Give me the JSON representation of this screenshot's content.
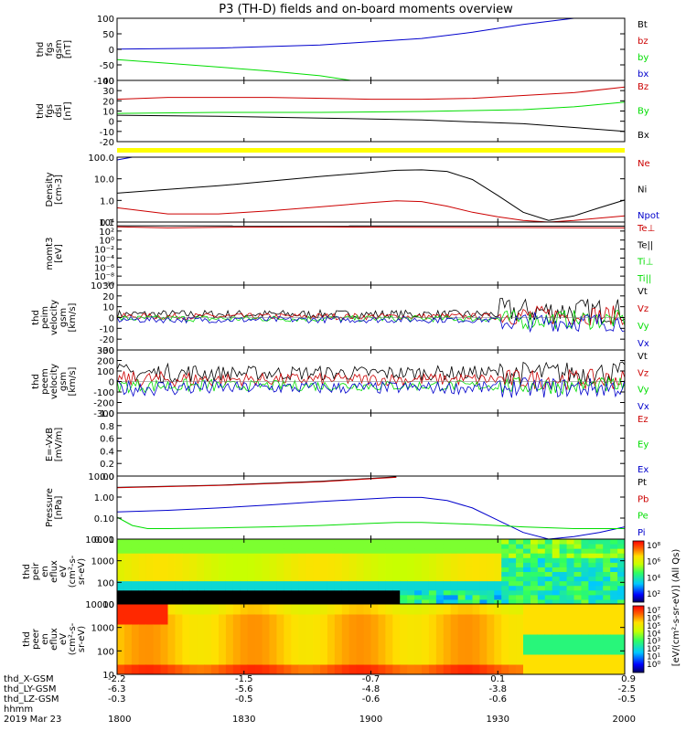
{
  "title": "P3 (TH-D) fields and on-board moments overview",
  "colors": {
    "black": "#000000",
    "red": "#cc0000",
    "green": "#00dd00",
    "blue": "#0000cc",
    "yellow": "#ffff00"
  },
  "chart_data": {
    "type": "line",
    "time_axis": {
      "ticks": [
        "1800",
        "1830",
        "1900",
        "1930",
        "2000"
      ],
      "range": [
        "18:00",
        "20:00"
      ],
      "row_labels": [
        "thd_X-GSM",
        "thd_LY-GSM",
        "thd_LZ-GSM",
        "hhmm",
        "2019 Mar 23"
      ],
      "x_gsm": [
        "-2.2",
        "-1.5",
        "-0.7",
        "0.1",
        "0.9"
      ],
      "y_gsm": [
        "-6.3",
        "-5.6",
        "-4.8",
        "-3.8",
        "-2.5"
      ],
      "z_gsm": [
        "-0.3",
        "-0.5",
        "-0.6",
        "-0.6",
        "-0.5"
      ]
    },
    "panels": [
      {
        "id": "fgs-gsm",
        "ylabel": [
          "thd",
          "fgs",
          "gsm",
          "[nT]"
        ],
        "ylim": [
          -100,
          100
        ],
        "yticks": [
          "100",
          "50",
          "0",
          "-50",
          "-100"
        ],
        "legend": [
          {
            "name": "Bt",
            "color": "black"
          },
          {
            "name": "bz",
            "color": "red"
          },
          {
            "name": "by",
            "color": "green"
          },
          {
            "name": "bx",
            "color": "blue"
          }
        ],
        "series": [
          {
            "name": "bx",
            "color": "blue",
            "x": [
              0,
              0.2,
              0.4,
              0.6,
              0.7,
              0.8,
              0.9
            ],
            "y": [
              1,
              4,
              14,
              35,
              55,
              80,
              105
            ]
          },
          {
            "name": "by",
            "color": "green",
            "x": [
              0,
              0.1,
              0.2,
              0.3,
              0.4,
              0.46
            ],
            "y": [
              -33,
              -45,
              -57,
              -70,
              -85,
              -102
            ]
          }
        ]
      },
      {
        "id": "fgs-dsl",
        "ylabel": [
          "thd",
          "fgs",
          "dsl",
          "[nT]"
        ],
        "ylim": [
          -25,
          40
        ],
        "yticks": [
          "40",
          "30",
          "20",
          "10",
          "0",
          "-10",
          "-20"
        ],
        "legend": [
          {
            "name": "Bz",
            "color": "red"
          },
          {
            "name": "By",
            "color": "green"
          },
          {
            "name": "Bx",
            "color": "black"
          }
        ],
        "series": [
          {
            "name": "Bz",
            "color": "red",
            "x": [
              0,
              0.1,
              0.3,
              0.5,
              0.6,
              0.7,
              0.8,
              0.9,
              1
            ],
            "y": [
              20,
              22,
              22,
              20,
              20,
              21,
              24,
              27,
              33
            ]
          },
          {
            "name": "By",
            "color": "green",
            "x": [
              0,
              0.2,
              0.4,
              0.6,
              0.7,
              0.8,
              0.9,
              1
            ],
            "y": [
              5,
              6,
              6,
              7,
              8,
              9,
              12,
              17
            ]
          },
          {
            "name": "Bx",
            "color": "black",
            "x": [
              0,
              0.2,
              0.4,
              0.6,
              0.7,
              0.8,
              0.9,
              1
            ],
            "y": [
              3,
              2,
              0,
              -2,
              -4,
              -6,
              -10,
              -14
            ]
          }
        ]
      },
      {
        "id": "density",
        "ylabel": [
          "Density",
          "[cm-3]"
        ],
        "log": true,
        "ylim": [
          0.1,
          150
        ],
        "yticks": [
          "100.0",
          "10.0",
          "1.0",
          "0.1"
        ],
        "legend": [
          {
            "name": "Ne",
            "color": "red"
          },
          {
            "name": "Ni",
            "color": "black"
          },
          {
            "name": "Npot",
            "color": "blue"
          }
        ],
        "series": [
          {
            "name": "Ni",
            "color": "black",
            "x": [
              0,
              0.1,
              0.2,
              0.3,
              0.4,
              0.5,
              0.55,
              0.6,
              0.65,
              0.7,
              0.75,
              0.8,
              0.85,
              0.9,
              0.95,
              1
            ],
            "y": [
              2.6,
              4,
              6,
              10,
              17,
              27,
              34,
              36,
              30,
              12,
              2,
              0.3,
              0.12,
              0.2,
              0.5,
              1.2
            ]
          },
          {
            "name": "Ne",
            "color": "red",
            "x": [
              0,
              0.05,
              0.1,
              0.2,
              0.3,
              0.4,
              0.5,
              0.55,
              0.6,
              0.65,
              0.7,
              0.75,
              0.8,
              0.85,
              0.9,
              1
            ],
            "y": [
              0.5,
              0.35,
              0.25,
              0.25,
              0.35,
              0.55,
              0.9,
              1.1,
              1.0,
              0.6,
              0.3,
              0.18,
              0.12,
              0.1,
              0.12,
              0.2
            ]
          },
          {
            "name": "Npot",
            "color": "blue",
            "x": [
              0,
              0.03
            ],
            "y": [
              110,
              160
            ]
          }
        ]
      },
      {
        "id": "mom-t",
        "ylabel": [
          "momt3",
          "[eV]"
        ],
        "log": true,
        "ylim": [
          1e-10,
          10000
        ],
        "yticks": [
          "10⁴",
          "10²",
          "10⁰",
          "10⁻²",
          "10⁻⁴",
          "10⁻⁶",
          "10⁻⁸",
          "10⁻¹⁰"
        ],
        "legend": [
          {
            "name": "Te⊥",
            "color": "red"
          },
          {
            "name": "Te||",
            "color": "black"
          },
          {
            "name": "Ti⊥",
            "color": "green"
          },
          {
            "name": "Ti||",
            "color": "green"
          }
        ],
        "series": [
          {
            "name": "Te||",
            "color": "black",
            "x": [
              0,
              1
            ],
            "y": [
              1500,
              1200
            ]
          },
          {
            "name": "Te⊥",
            "color": "red",
            "x": [
              0,
              0.1,
              0.2,
              0.4,
              0.6,
              0.8,
              1
            ],
            "y": [
              900,
              500,
              700,
              800,
              700,
              600,
              500
            ]
          }
        ]
      },
      {
        "id": "peim",
        "ylabel": [
          "thd",
          "peim",
          "velocity",
          "gsm",
          "[km/s]"
        ],
        "ylim": [
          -30,
          30
        ],
        "yticks": [
          "30",
          "20",
          "10",
          "0",
          "-10",
          "-20",
          "-30"
        ],
        "legend": [
          {
            "name": "Vt",
            "color": "black"
          },
          {
            "name": "Vz",
            "color": "red"
          },
          {
            "name": "Vy",
            "color": "green"
          },
          {
            "name": "Vx",
            "color": "blue"
          }
        ]
      },
      {
        "id": "peem",
        "ylabel": [
          "thd",
          "peem",
          "velocity",
          "gsm",
          "[km/s]"
        ],
        "ylim": [
          -300,
          300
        ],
        "yticks": [
          "300",
          "200",
          "100",
          "0",
          "-100",
          "-200",
          "-300"
        ],
        "legend": [
          {
            "name": "Vt",
            "color": "black"
          },
          {
            "name": "Vz",
            "color": "red"
          },
          {
            "name": "Vy",
            "color": "green"
          },
          {
            "name": "Vx",
            "color": "blue"
          }
        ]
      },
      {
        "id": "efield",
        "ylabel": [
          "E=-VxB",
          "[mV/m]"
        ],
        "ylim": [
          0,
          1
        ],
        "yticks": [
          "1.0",
          "0.8",
          "0.6",
          "0.4",
          "0.2",
          "0.0"
        ],
        "legend": [
          {
            "name": "Ez",
            "color": "red"
          },
          {
            "name": "Ey",
            "color": "green"
          },
          {
            "name": "Ex",
            "color": "blue"
          }
        ]
      },
      {
        "id": "pressure",
        "ylabel": [
          "Pressure",
          "[nPa]"
        ],
        "log": true,
        "ylim": [
          0.005,
          20
        ],
        "yticks": [
          "10.00",
          "1.00",
          "0.10",
          "0.01"
        ],
        "legend": [
          {
            "name": "Pt",
            "color": "black"
          },
          {
            "name": "Pb",
            "color": "red"
          },
          {
            "name": "Pe",
            "color": "green"
          },
          {
            "name": "Pi",
            "color": "blue"
          }
        ],
        "series": [
          {
            "name": "Pt",
            "color": "black",
            "x": [
              0,
              0.2,
              0.4,
              0.55
            ],
            "y": [
              4.5,
              6,
              10,
              18
            ]
          },
          {
            "name": "Pb",
            "color": "red",
            "x": [
              0,
              0.2,
              0.4,
              0.55
            ],
            "y": [
              4.3,
              5.8,
              9.5,
              17
            ]
          },
          {
            "name": "Pi",
            "color": "blue",
            "x": [
              0,
              0.1,
              0.2,
              0.3,
              0.4,
              0.5,
              0.55,
              0.6,
              0.65,
              0.7,
              0.75,
              0.8,
              0.85,
              0.9,
              0.95,
              1
            ],
            "y": [
              0.18,
              0.22,
              0.3,
              0.45,
              0.7,
              1.0,
              1.2,
              1.2,
              0.8,
              0.3,
              0.06,
              0.012,
              0.005,
              0.007,
              0.012,
              0.025
            ]
          },
          {
            "name": "Pe",
            "color": "green",
            "x": [
              0,
              0.03,
              0.06,
              0.1,
              0.2,
              0.3,
              0.4,
              0.5,
              0.55,
              0.6,
              0.7,
              0.8,
              0.9,
              1
            ],
            "y": [
              0.09,
              0.03,
              0.02,
              0.02,
              0.022,
              0.025,
              0.03,
              0.04,
              0.045,
              0.045,
              0.035,
              0.025,
              0.02,
              0.02
            ]
          }
        ]
      },
      {
        "id": "peir",
        "type": "heatmap",
        "ylabel": [
          "thd",
          "peir",
          "en",
          "eflux",
          "eV",
          "(cm²-s-",
          "sr-eV)"
        ],
        "log": true,
        "ylim": [
          6,
          25000
        ],
        "yticks": [
          "10000",
          "1000",
          "100",
          "10"
        ]
      },
      {
        "id": "peer",
        "type": "heatmap",
        "ylabel": [
          "thd",
          "peer",
          "en",
          "eflux",
          "eV",
          "(cm²-s-",
          "sr-eV)"
        ],
        "log": true,
        "ylim": [
          6,
          25000
        ],
        "yticks": [
          "10000",
          "1000",
          "100",
          "10"
        ]
      }
    ],
    "colorbars": [
      {
        "for": "peir",
        "ticks": [
          "10⁸",
          "10⁶",
          "10⁴",
          "10²"
        ]
      },
      {
        "for": "peer",
        "ticks": [
          "10⁷",
          "10⁶",
          "10⁵",
          "10⁴",
          "10³",
          "10²",
          "10¹",
          "10⁰"
        ]
      }
    ],
    "colorbar_label": "[eV/(cm²-s-sr-eV)] (All Qs)"
  }
}
